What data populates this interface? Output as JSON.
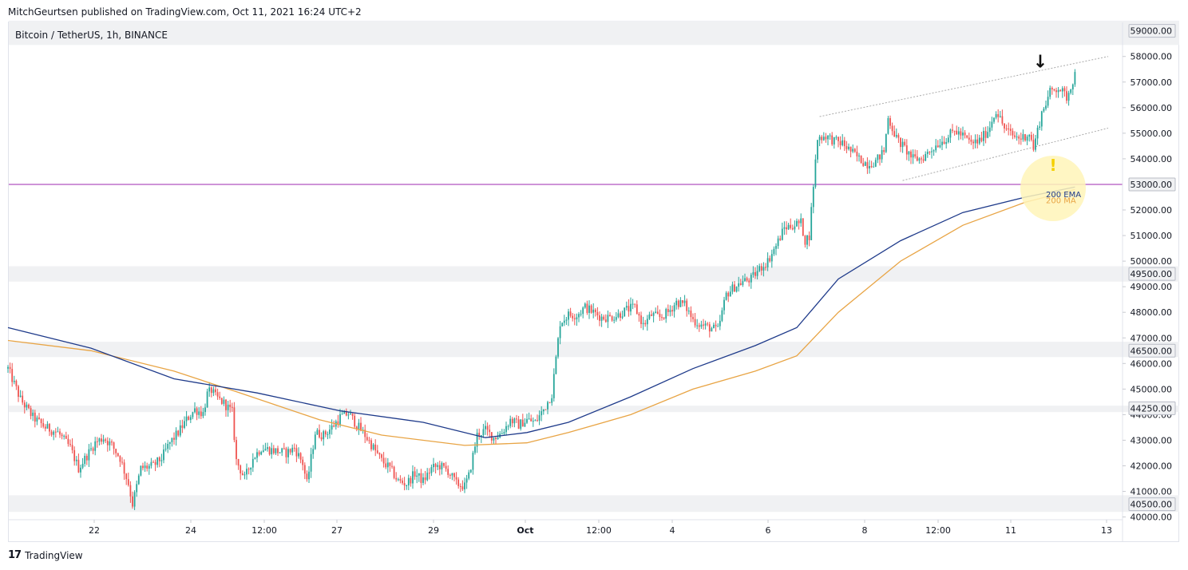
{
  "header": {
    "published": "MitchGeurtsen published on TradingView.com, Oct 11, 2021 16:24 UTC+2",
    "symbol": "Bitcoin / TetherUS, 1h, BINANCE"
  },
  "footer": {
    "logo_mark": "17",
    "brand": "TradingView"
  },
  "colors": {
    "up": "#26a69a",
    "down": "#ef5350",
    "ema": "#1e3a8a",
    "ma": "#e8a444",
    "support_band": "#f0f1f3",
    "resistance_line": "#9c27b0",
    "channel": "#aaaaaa",
    "highlight": "#fff5b8",
    "warning": "#f5d000"
  },
  "chart_data": {
    "type": "candlestick",
    "title": "Bitcoin / TetherUS, 1h, BINANCE",
    "xlabel": "",
    "ylabel": "",
    "ylim": [
      40000,
      59400
    ],
    "x_ticks": [
      "22",
      "24",
      "12:00",
      "27",
      "29",
      "Oct",
      "12:00",
      "4",
      "6",
      "8",
      "12:00",
      "11",
      "13"
    ],
    "y_ticks": [
      "58000.00",
      "57000.00",
      "56000.00",
      "55000.00",
      "54000.00",
      "52000.00",
      "51000.00",
      "50000.00",
      "49000.00",
      "48000.00",
      "47000.00",
      "46000.00",
      "45000.00",
      "44000.00",
      "43000.00",
      "42000.00",
      "41000.00",
      "40000.00"
    ],
    "y_tick_values": [
      58000,
      57000,
      56000,
      55000,
      54000,
      52000,
      51000,
      50000,
      49000,
      48000,
      47000,
      46000,
      45000,
      44000,
      43000,
      42000,
      41000,
      40000
    ],
    "level_labels": [
      "59000.00",
      "53000.00",
      "49500.00",
      "46500.00",
      "44250.00",
      "40500.00"
    ],
    "level_values": [
      59000,
      53000,
      49500,
      46500,
      44250,
      40500
    ],
    "support_bands": [
      [
        58450,
        59400
      ],
      [
        49200,
        49800
      ],
      [
        46250,
        46850
      ],
      [
        44100,
        44350
      ],
      [
        40200,
        40850
      ]
    ],
    "resistance_line": 53000,
    "close_path": [
      [
        0,
        45800
      ],
      [
        6,
        44600
      ],
      [
        12,
        43900
      ],
      [
        18,
        43500
      ],
      [
        24,
        43300
      ],
      [
        30,
        42700
      ],
      [
        34,
        41900
      ],
      [
        38,
        42400
      ],
      [
        42,
        42900
      ],
      [
        46,
        43100
      ],
      [
        50,
        42800
      ],
      [
        54,
        42300
      ],
      [
        58,
        41300
      ],
      [
        60,
        40500
      ],
      [
        64,
        41900
      ],
      [
        70,
        42000
      ],
      [
        74,
        42300
      ],
      [
        78,
        42900
      ],
      [
        82,
        43300
      ],
      [
        86,
        43800
      ],
      [
        90,
        44200
      ],
      [
        94,
        44050
      ],
      [
        96,
        44800
      ],
      [
        98,
        44950
      ],
      [
        100,
        44700
      ],
      [
        104,
        44450
      ],
      [
        108,
        44100
      ],
      [
        110,
        42200
      ],
      [
        114,
        41500
      ],
      [
        118,
        42300
      ],
      [
        122,
        42700
      ],
      [
        128,
        42600
      ],
      [
        134,
        42500
      ],
      [
        138,
        42700
      ],
      [
        142,
        42100
      ],
      [
        144,
        41300
      ],
      [
        148,
        43300
      ],
      [
        152,
        43200
      ],
      [
        156,
        43500
      ],
      [
        160,
        43900
      ],
      [
        164,
        44050
      ],
      [
        168,
        43600
      ],
      [
        172,
        43200
      ],
      [
        176,
        42700
      ],
      [
        180,
        42200
      ],
      [
        184,
        41900
      ],
      [
        188,
        41400
      ],
      [
        192,
        41300
      ],
      [
        196,
        41700
      ],
      [
        200,
        41400
      ],
      [
        204,
        41900
      ],
      [
        208,
        42000
      ],
      [
        212,
        41800
      ],
      [
        216,
        41300
      ],
      [
        220,
        41200
      ],
      [
        222,
        41600
      ],
      [
        226,
        43200
      ],
      [
        230,
        43400
      ],
      [
        234,
        43100
      ],
      [
        238,
        43300
      ],
      [
        242,
        43800
      ],
      [
        246,
        43600
      ],
      [
        250,
        43800
      ],
      [
        254,
        43700
      ],
      [
        258,
        44200
      ],
      [
        262,
        44800
      ],
      [
        266,
        47600
      ],
      [
        270,
        47900
      ],
      [
        274,
        47900
      ],
      [
        278,
        48200
      ],
      [
        282,
        48000
      ],
      [
        286,
        47800
      ],
      [
        290,
        47800
      ],
      [
        294,
        47900
      ],
      [
        298,
        48100
      ],
      [
        302,
        48200
      ],
      [
        306,
        47500
      ],
      [
        310,
        47900
      ],
      [
        314,
        47800
      ],
      [
        318,
        48000
      ],
      [
        322,
        48400
      ],
      [
        326,
        48300
      ],
      [
        330,
        47700
      ],
      [
        334,
        47500
      ],
      [
        338,
        47400
      ],
      [
        342,
        47300
      ],
      [
        346,
        48700
      ],
      [
        350,
        49000
      ],
      [
        354,
        49200
      ],
      [
        358,
        49300
      ],
      [
        362,
        49700
      ],
      [
        366,
        50000
      ],
      [
        370,
        50600
      ],
      [
        374,
        51300
      ],
      [
        378,
        51400
      ],
      [
        382,
        51500
      ],
      [
        384,
        50800
      ],
      [
        386,
        51000
      ],
      [
        388,
        53000
      ],
      [
        390,
        54800
      ],
      [
        394,
        54900
      ],
      [
        398,
        54700
      ],
      [
        402,
        54600
      ],
      [
        406,
        54300
      ],
      [
        410,
        54000
      ],
      [
        414,
        53800
      ],
      [
        418,
        53900
      ],
      [
        422,
        54300
      ],
      [
        424,
        55600
      ],
      [
        428,
        54800
      ],
      [
        432,
        54400
      ],
      [
        436,
        54000
      ],
      [
        440,
        54000
      ],
      [
        444,
        54300
      ],
      [
        448,
        54600
      ],
      [
        452,
        54800
      ],
      [
        456,
        55100
      ],
      [
        460,
        54900
      ],
      [
        464,
        54600
      ],
      [
        468,
        54700
      ],
      [
        472,
        55100
      ],
      [
        476,
        55900
      ],
      [
        480,
        55200
      ],
      [
        484,
        54900
      ],
      [
        488,
        54800
      ],
      [
        492,
        55000
      ],
      [
        494,
        54400
      ],
      [
        498,
        55800
      ],
      [
        502,
        56600
      ],
      [
        506,
        56800
      ],
      [
        510,
        56400
      ],
      [
        514,
        57300
      ]
    ],
    "ema_200": [
      [
        0,
        47400
      ],
      [
        40,
        46600
      ],
      [
        80,
        45400
      ],
      [
        120,
        44850
      ],
      [
        160,
        44150
      ],
      [
        200,
        43700
      ],
      [
        230,
        43100
      ],
      [
        250,
        43300
      ],
      [
        270,
        43700
      ],
      [
        300,
        44700
      ],
      [
        330,
        45800
      ],
      [
        360,
        46700
      ],
      [
        380,
        47400
      ],
      [
        400,
        49300
      ],
      [
        430,
        50800
      ],
      [
        460,
        51900
      ],
      [
        490,
        52500
      ],
      [
        514,
        52900
      ]
    ],
    "ma_200": [
      [
        0,
        46900
      ],
      [
        40,
        46500
      ],
      [
        80,
        45700
      ],
      [
        110,
        44900
      ],
      [
        150,
        43800
      ],
      [
        180,
        43200
      ],
      [
        220,
        42800
      ],
      [
        250,
        42900
      ],
      [
        270,
        43300
      ],
      [
        300,
        44000
      ],
      [
        330,
        45000
      ],
      [
        360,
        45700
      ],
      [
        380,
        46300
      ],
      [
        400,
        48000
      ],
      [
        430,
        50000
      ],
      [
        460,
        51400
      ],
      [
        490,
        52300
      ],
      [
        514,
        52800
      ]
    ],
    "channel_upper": [
      [
        391,
        55650
      ],
      [
        530,
        58000
      ]
    ],
    "channel_lower": [
      [
        431,
        53150
      ],
      [
        530,
        55200
      ]
    ],
    "annotations": [
      {
        "label": "200 EMA",
        "value": 52600,
        "series": "ema_200"
      },
      {
        "label": "200 MA",
        "value": 52300,
        "series": "ma_200"
      },
      {
        "label": "!",
        "value": 53900,
        "role": "warning"
      },
      {
        "label": "↓",
        "value": 58000,
        "role": "arrow"
      }
    ]
  }
}
